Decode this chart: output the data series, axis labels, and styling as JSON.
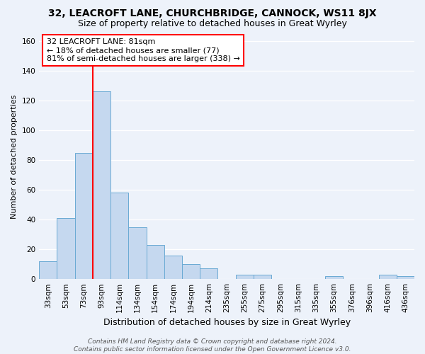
{
  "title": "32, LEACROFT LANE, CHURCHBRIDGE, CANNOCK, WS11 8JX",
  "subtitle": "Size of property relative to detached houses in Great Wyrley",
  "xlabel": "Distribution of detached houses by size in Great Wyrley",
  "ylabel": "Number of detached properties",
  "bin_labels": [
    "33sqm",
    "53sqm",
    "73sqm",
    "93sqm",
    "114sqm",
    "134sqm",
    "154sqm",
    "174sqm",
    "194sqm",
    "214sqm",
    "235sqm",
    "255sqm",
    "275sqm",
    "295sqm",
    "315sqm",
    "335sqm",
    "355sqm",
    "376sqm",
    "396sqm",
    "416sqm",
    "436sqm"
  ],
  "bar_heights": [
    12,
    41,
    85,
    126,
    58,
    35,
    23,
    16,
    10,
    7,
    0,
    3,
    3,
    0,
    0,
    0,
    2,
    0,
    0,
    3,
    2
  ],
  "bar_color": "#c5d8ef",
  "bar_edge_color": "#6aaad4",
  "vline_x_idx": 2.5,
  "vline_color": "red",
  "annotation_line1": "32 LEACROFT LANE: 81sqm",
  "annotation_line2": "← 18% of detached houses are smaller (77)",
  "annotation_line3": "81% of semi-detached houses are larger (338) →",
  "annotation_box_color": "white",
  "annotation_box_edge": "red",
  "ylim": [
    0,
    165
  ],
  "yticks": [
    0,
    20,
    40,
    60,
    80,
    100,
    120,
    140,
    160
  ],
  "plot_bg_color": "#edf2fa",
  "fig_bg_color": "#edf2fa",
  "footer_text": "Contains HM Land Registry data © Crown copyright and database right 2024.\nContains public sector information licensed under the Open Government Licence v3.0.",
  "title_fontsize": 10,
  "subtitle_fontsize": 9,
  "xlabel_fontsize": 9,
  "ylabel_fontsize": 8,
  "tick_fontsize": 7.5,
  "annotation_fontsize": 8,
  "footer_fontsize": 6.5
}
